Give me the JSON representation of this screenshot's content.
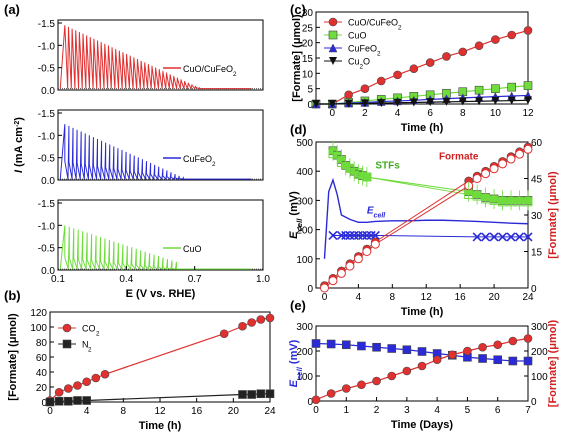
{
  "chart_data": [
    {
      "panel": "(a)",
      "type": "line",
      "xlabel": "E (V vs. RHE)",
      "ylabel": "I (mA cm-2)",
      "xlim": [
        0.1,
        1.0
      ],
      "ylim": [
        -1.5,
        0.0
      ],
      "xticks": [
        "0.1",
        "0.4",
        "0.7",
        "1.0"
      ],
      "yticks": [
        "0.0",
        "-0.5",
        "-1.0",
        "-1.5"
      ],
      "subplots": [
        {
          "label": "CuO/CuFeO2",
          "color": "#e03030",
          "baseline": -0.03,
          "peak_start": -1.45,
          "peak_end": -0.05,
          "pulses": 38,
          "x_start": 0.13,
          "x_end": 0.72,
          "fill_to": 0.95,
          "bottom_level": -1.45
        },
        {
          "label": "CuFeO2",
          "color": "#2a2ad8",
          "baseline": -0.02,
          "peak_start": -1.25,
          "peak_end": -0.05,
          "pulses": 30,
          "x_start": 0.13,
          "x_end": 0.65,
          "fill_to": 0.95,
          "bottom_level": -0.42
        },
        {
          "label": "CuO",
          "color": "#6fdc3c",
          "baseline": -0.02,
          "peak_start": -1.0,
          "peak_end": -0.18,
          "pulses": 26,
          "x_start": 0.13,
          "x_end": 0.62,
          "fill_to": 0.95,
          "bottom_level": -0.28
        }
      ]
    },
    {
      "panel": "(b)",
      "type": "line",
      "xlabel": "Time (h)",
      "ylabel": "[Formate] (μmol)",
      "xlim": [
        0,
        24
      ],
      "ylim": [
        0,
        120
      ],
      "xticks": [
        "0",
        "4",
        "8",
        "12",
        "16",
        "20",
        "24"
      ],
      "yticks": [
        "0",
        "20",
        "40",
        "60",
        "80",
        "100",
        "120"
      ],
      "series": [
        {
          "name": "CO2",
          "color": "#e03030",
          "marker": "circle",
          "x": [
            0,
            1,
            2,
            3,
            4,
            5,
            6,
            19,
            21,
            22,
            23,
            24
          ],
          "y": [
            2,
            13,
            18,
            22,
            27,
            32,
            37,
            91,
            101,
            106,
            110,
            112
          ]
        },
        {
          "name": "N2",
          "color": "#222222",
          "marker": "square",
          "x": [
            0,
            1,
            2,
            3,
            4,
            21,
            22,
            23,
            24
          ],
          "y": [
            0,
            1,
            1,
            2,
            2,
            10,
            10,
            11,
            11
          ]
        }
      ]
    },
    {
      "panel": "(c)",
      "type": "line",
      "xlabel": "Time (h)",
      "ylabel": "[Formate] (μmol)",
      "xlim": [
        -1,
        12
      ],
      "ylim": [
        0,
        30
      ],
      "xticks": [
        "0",
        "2",
        "4",
        "6",
        "8",
        "10",
        "12"
      ],
      "yticks": [
        "0",
        "5",
        "10",
        "15",
        "20",
        "25",
        "30"
      ],
      "series": [
        {
          "name": "CuO/CuFeO2",
          "color": "#e03030",
          "marker": "circle",
          "x": [
            -1,
            0,
            1,
            2,
            3,
            4,
            5,
            6,
            7,
            8,
            9,
            10,
            11,
            12
          ],
          "y": [
            0,
            0,
            3,
            5,
            7.5,
            9.5,
            11.5,
            13.5,
            15.5,
            17,
            19,
            21,
            22.5,
            24
          ]
        },
        {
          "name": "CuO",
          "color": "#6fdc3c",
          "marker": "square",
          "x": [
            -1,
            0,
            1,
            2,
            3,
            4,
            5,
            6,
            7,
            8,
            9,
            10,
            11,
            12
          ],
          "y": [
            0,
            0,
            0.5,
            1,
            1.5,
            2,
            2.5,
            3,
            3.5,
            4,
            4.5,
            5,
            5.5,
            6
          ]
        },
        {
          "name": "CuFeO2",
          "color": "#2a2ad8",
          "marker": "triangle",
          "x": [
            -1,
            0,
            1,
            2,
            3,
            4,
            5,
            6,
            7,
            8,
            9,
            10,
            11,
            12
          ],
          "y": [
            0,
            0,
            0.3,
            0.5,
            0.8,
            1,
            1.2,
            1.5,
            1.7,
            2,
            2.2,
            2.4,
            2.6,
            2.8
          ]
        },
        {
          "name": "Cu2O",
          "color": "#111111",
          "marker": "triangle-down",
          "x": [
            -1,
            0,
            1,
            2,
            3,
            4,
            5,
            6,
            7,
            8,
            9,
            10,
            11,
            12
          ],
          "y": [
            0,
            0,
            0.1,
            0.2,
            0.3,
            0.4,
            0.5,
            0.6,
            0.7,
            0.8,
            0.9,
            1,
            1.1,
            1.2
          ]
        }
      ]
    },
    {
      "panel": "(d)",
      "type": "line",
      "xlabel": "Time (h)",
      "ylabel": "E_cell (mV)",
      "ylabel_right": "[Formate] (μmol)",
      "xlim": [
        -1,
        24
      ],
      "ylim": [
        0,
        500
      ],
      "ylim_right": [
        0,
        60
      ],
      "xticks": [
        "0",
        "4",
        "8",
        "12",
        "16",
        "20",
        "24"
      ],
      "yticks": [
        "0",
        "100",
        "200",
        "300",
        "400",
        "500"
      ],
      "yticks_right": [
        "0",
        "15",
        "30",
        "45",
        "60"
      ],
      "annotations": [
        "STFs",
        "Formate",
        "E_cell"
      ],
      "series": [
        {
          "name": "STFs",
          "color": "#6fdc3c",
          "marker": "square",
          "axis": "left",
          "x": [
            1,
            1.5,
            2,
            2.5,
            3,
            3.5,
            4,
            4.5,
            5,
            17,
            18,
            19,
            20,
            21,
            22,
            23,
            24
          ],
          "y": [
            470,
            455,
            440,
            420,
            410,
            400,
            390,
            385,
            380,
            330,
            320,
            310,
            305,
            300,
            300,
            300,
            300
          ]
        },
        {
          "name": "STFs-2",
          "color": "#6fdc3c",
          "marker": "square-open",
          "axis": "left",
          "x": [
            1,
            2,
            3,
            4,
            5,
            17,
            18,
            19,
            20,
            21,
            22,
            23,
            24
          ],
          "y": [
            460,
            430,
            410,
            395,
            380,
            320,
            315,
            305,
            300,
            295,
            295,
            295,
            295
          ]
        },
        {
          "name": "E_cell",
          "color": "#2a2ad8",
          "marker": "none",
          "axis": "left",
          "x": [
            0,
            0.5,
            1,
            1.5,
            2,
            3,
            4,
            5,
            6,
            8,
            10,
            12,
            14,
            16,
            18,
            20,
            22,
            24
          ],
          "y": [
            100,
            330,
            370,
            320,
            250,
            235,
            225,
            225,
            228,
            230,
            230,
            232,
            232,
            230,
            228,
            225,
            222,
            220
          ]
        },
        {
          "name": "E_cell-cross",
          "color": "#2a2ad8",
          "marker": "cross",
          "axis": "left",
          "x": [
            1,
            2,
            2.5,
            3,
            3.5,
            4,
            4.5,
            5,
            5.5,
            6,
            18,
            19,
            20,
            21,
            22,
            23,
            24
          ],
          "y": [
            180,
            180,
            180,
            180,
            180,
            180,
            180,
            180,
            180,
            180,
            175,
            175,
            175,
            175,
            175,
            175,
            175
          ]
        },
        {
          "name": "Formate",
          "color": "#e03030",
          "marker": "circle",
          "axis": "right",
          "x": [
            0,
            1,
            2,
            3,
            4,
            5,
            6,
            17,
            18,
            19,
            20,
            21,
            22,
            23,
            24
          ],
          "y": [
            1,
            4,
            7,
            10,
            13,
            16,
            19,
            44,
            46,
            48,
            50,
            52,
            54,
            56,
            58
          ]
        },
        {
          "name": "Formate-2",
          "color": "#e03030",
          "marker": "circle-open",
          "axis": "right",
          "x": [
            0,
            1,
            2,
            3,
            4,
            5,
            6,
            17,
            18,
            19,
            20,
            21,
            22,
            23,
            24
          ],
          "y": [
            0,
            3,
            6,
            9,
            12,
            15,
            18,
            42,
            45,
            47,
            49,
            51,
            53,
            55,
            57
          ]
        }
      ]
    },
    {
      "panel": "(e)",
      "type": "line",
      "xlabel": "Time (Days)",
      "ylabel": "E_cell (mV)",
      "ylabel_right": "[Formate] (μmol)",
      "xlim": [
        0,
        7
      ],
      "ylim": [
        0,
        300
      ],
      "ylim_right": [
        0,
        300
      ],
      "xticks": [
        "0",
        "1",
        "2",
        "3",
        "4",
        "5",
        "6",
        "7"
      ],
      "yticks": [
        "0",
        "100",
        "200",
        "300"
      ],
      "yticks_right": [
        "0",
        "100",
        "200",
        "300"
      ],
      "series": [
        {
          "name": "E_cell",
          "color": "#2a2ad8",
          "marker": "square",
          "axis": "left",
          "x": [
            0,
            0.5,
            1,
            1.5,
            2,
            2.5,
            3,
            3.5,
            4,
            4.5,
            5,
            5.5,
            6,
            6.5,
            7
          ],
          "y": [
            230,
            228,
            225,
            220,
            215,
            210,
            205,
            198,
            190,
            183,
            175,
            170,
            165,
            160,
            160
          ]
        },
        {
          "name": "Formate",
          "color": "#e03030",
          "marker": "circle",
          "axis": "right",
          "x": [
            0,
            0.5,
            1,
            1.5,
            2,
            2.5,
            3,
            3.5,
            4,
            4.5,
            5,
            5.5,
            6,
            6.5,
            7
          ],
          "y": [
            5,
            30,
            50,
            65,
            80,
            100,
            120,
            140,
            165,
            185,
            200,
            215,
            225,
            240,
            250
          ]
        }
      ]
    }
  ]
}
